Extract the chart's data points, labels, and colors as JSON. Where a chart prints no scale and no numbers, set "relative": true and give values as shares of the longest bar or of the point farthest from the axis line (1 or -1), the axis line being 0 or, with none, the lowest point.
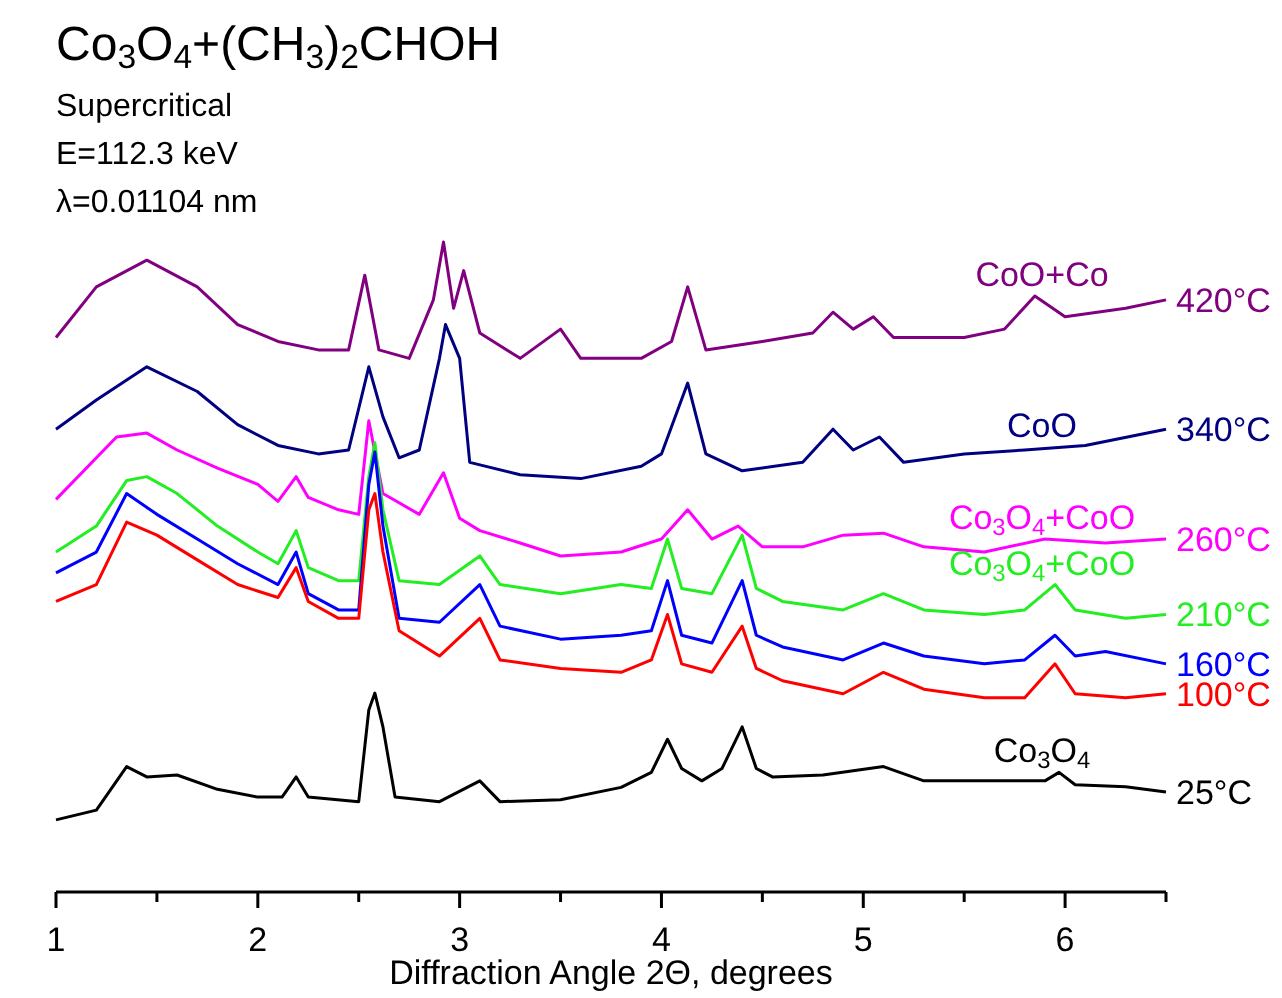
{
  "chart_data": {
    "type": "line",
    "relative": true,
    "title": "Co$_{3}$O$_{4}$+(CH$_{3}$)$_{2}$CHOH",
    "subtitle": "Supercritical\nE=112.3 keV\nλ=0.01104 nm",
    "xlabel": "Diffraction Angle 2Θ, degrees",
    "xlim": [
      1,
      6.5
    ],
    "xticks": [
      1,
      {
        "value": 1.5,
        "label": null
      },
      2,
      {
        "value": 2.5,
        "label": null
      },
      3,
      {
        "value": 3.5,
        "label": null
      },
      4,
      {
        "value": 4.5,
        "label": null
      },
      5,
      {
        "value": 5.5,
        "label": null
      },
      6,
      {
        "value": 6.5,
        "label": null
      }
    ],
    "tick_labels": "x",
    "grid": false,
    "marker": "none",
    "line_style": "solid",
    "series": [
      {
        "name": "420°C",
        "color": "#800080",
        "x": [
          1.0,
          1.2,
          1.45,
          1.7,
          1.9,
          2.1,
          2.3,
          2.45,
          2.53,
          2.6,
          2.75,
          2.87,
          2.92,
          2.97,
          3.02,
          3.1,
          3.3,
          3.5,
          3.6,
          3.9,
          4.05,
          4.13,
          4.22,
          4.5,
          4.75,
          4.85,
          4.95,
          5.05,
          5.15,
          5.5,
          5.7,
          5.85,
          6.0,
          6.3,
          6.5
        ],
        "values": [
          0.853,
          0.931,
          0.972,
          0.931,
          0.873,
          0.847,
          0.834,
          0.834,
          0.949,
          0.834,
          0.821,
          0.911,
          1.0,
          0.898,
          0.956,
          0.86,
          0.821,
          0.866,
          0.821,
          0.821,
          0.847,
          0.931,
          0.834,
          0.847,
          0.86,
          0.892,
          0.866,
          0.885,
          0.853,
          0.853,
          0.866,
          0.917,
          0.885,
          0.898,
          0.911
        ]
      },
      {
        "name": "340°C",
        "color": "#000080",
        "x": [
          1.0,
          1.2,
          1.45,
          1.7,
          1.9,
          2.1,
          2.3,
          2.45,
          2.55,
          2.62,
          2.7,
          2.8,
          2.9,
          2.93,
          3.0,
          3.05,
          3.3,
          3.6,
          3.9,
          4.0,
          4.13,
          4.22,
          4.4,
          4.7,
          4.85,
          4.95,
          5.08,
          5.2,
          5.5,
          5.8,
          6.1,
          6.5
        ],
        "values": [
          0.712,
          0.757,
          0.808,
          0.77,
          0.719,
          0.687,
          0.674,
          0.68,
          0.808,
          0.731,
          0.668,
          0.68,
          0.821,
          0.873,
          0.821,
          0.661,
          0.642,
          0.636,
          0.655,
          0.674,
          0.783,
          0.674,
          0.648,
          0.661,
          0.712,
          0.68,
          0.7,
          0.661,
          0.674,
          0.68,
          0.687,
          0.712
        ]
      },
      {
        "name": "260°C",
        "color": "#ff00ff",
        "x": [
          1.0,
          1.3,
          1.45,
          1.6,
          1.8,
          2.0,
          2.1,
          2.19,
          2.25,
          2.4,
          2.5,
          2.55,
          2.62,
          2.8,
          2.92,
          3.0,
          3.1,
          3.3,
          3.5,
          3.8,
          4.0,
          4.13,
          4.25,
          4.38,
          4.5,
          4.7,
          4.9,
          5.1,
          5.3,
          5.6,
          5.9,
          6.2,
          6.5
        ],
        "values": [
          0.604,
          0.7,
          0.706,
          0.68,
          0.652,
          0.627,
          0.601,
          0.639,
          0.607,
          0.588,
          0.581,
          0.725,
          0.613,
          0.581,
          0.645,
          0.575,
          0.556,
          0.537,
          0.517,
          0.523,
          0.543,
          0.588,
          0.543,
          0.563,
          0.531,
          0.531,
          0.549,
          0.552,
          0.531,
          0.523,
          0.543,
          0.537,
          0.543
        ]
      },
      {
        "name": "210°C",
        "color": "#22ee22",
        "x": [
          1.0,
          1.2,
          1.35,
          1.45,
          1.6,
          1.8,
          2.0,
          2.1,
          2.19,
          2.25,
          2.4,
          2.5,
          2.55,
          2.58,
          2.62,
          2.7,
          2.9,
          3.1,
          3.2,
          3.5,
          3.8,
          3.95,
          4.03,
          4.1,
          4.25,
          4.4,
          4.47,
          4.6,
          4.9,
          5.1,
          5.3,
          5.6,
          5.8,
          5.95,
          6.05,
          6.3,
          6.5
        ],
        "values": [
          0.523,
          0.563,
          0.633,
          0.639,
          0.613,
          0.563,
          0.523,
          0.505,
          0.556,
          0.499,
          0.479,
          0.479,
          0.639,
          0.691,
          0.588,
          0.479,
          0.473,
          0.517,
          0.473,
          0.459,
          0.473,
          0.467,
          0.543,
          0.467,
          0.459,
          0.549,
          0.467,
          0.447,
          0.434,
          0.459,
          0.434,
          0.427,
          0.434,
          0.473,
          0.434,
          0.421,
          0.427
        ]
      },
      {
        "name": "160°C",
        "color": "#0000ff",
        "x": [
          1.0,
          1.2,
          1.35,
          1.5,
          1.7,
          1.9,
          2.1,
          2.19,
          2.25,
          2.4,
          2.5,
          2.55,
          2.58,
          2.62,
          2.7,
          2.9,
          3.1,
          3.2,
          3.5,
          3.8,
          3.95,
          4.03,
          4.1,
          4.25,
          4.4,
          4.47,
          4.6,
          4.9,
          5.1,
          5.3,
          5.6,
          5.8,
          5.95,
          6.05,
          6.2,
          6.5
        ],
        "values": [
          0.491,
          0.523,
          0.613,
          0.581,
          0.543,
          0.505,
          0.473,
          0.523,
          0.459,
          0.434,
          0.434,
          0.627,
          0.677,
          0.563,
          0.421,
          0.415,
          0.473,
          0.409,
          0.389,
          0.395,
          0.402,
          0.479,
          0.395,
          0.383,
          0.479,
          0.395,
          0.377,
          0.357,
          0.383,
          0.363,
          0.351,
          0.357,
          0.395,
          0.363,
          0.37,
          0.351
        ]
      },
      {
        "name": "100°C",
        "color": "#ff0000",
        "x": [
          1.0,
          1.2,
          1.35,
          1.5,
          1.7,
          1.9,
          2.1,
          2.19,
          2.25,
          2.4,
          2.5,
          2.55,
          2.58,
          2.62,
          2.7,
          2.9,
          3.1,
          3.2,
          3.5,
          3.8,
          3.95,
          4.03,
          4.1,
          4.25,
          4.4,
          4.47,
          4.6,
          4.9,
          5.1,
          5.3,
          5.6,
          5.8,
          5.95,
          6.05,
          6.3,
          6.5
        ],
        "values": [
          0.447,
          0.473,
          0.569,
          0.549,
          0.511,
          0.473,
          0.453,
          0.499,
          0.447,
          0.421,
          0.421,
          0.588,
          0.613,
          0.523,
          0.402,
          0.363,
          0.421,
          0.357,
          0.344,
          0.338,
          0.357,
          0.427,
          0.351,
          0.338,
          0.409,
          0.344,
          0.325,
          0.305,
          0.338,
          0.312,
          0.299,
          0.299,
          0.351,
          0.305,
          0.299,
          0.305
        ]
      },
      {
        "name": "25°C",
        "color": "#000000",
        "x": [
          1.0,
          1.2,
          1.35,
          1.45,
          1.6,
          1.8,
          2.0,
          2.12,
          2.19,
          2.25,
          2.5,
          2.55,
          2.58,
          2.62,
          2.68,
          2.9,
          3.1,
          3.2,
          3.5,
          3.8,
          3.95,
          4.03,
          4.1,
          4.2,
          4.3,
          4.4,
          4.47,
          4.55,
          4.8,
          5.1,
          5.3,
          5.6,
          5.9,
          5.97,
          6.05,
          6.3,
          6.5
        ],
        "values": [
          0.111,
          0.126,
          0.193,
          0.177,
          0.18,
          0.158,
          0.146,
          0.146,
          0.177,
          0.146,
          0.139,
          0.28,
          0.306,
          0.254,
          0.146,
          0.139,
          0.171,
          0.139,
          0.142,
          0.161,
          0.184,
          0.235,
          0.19,
          0.171,
          0.19,
          0.254,
          0.19,
          0.177,
          0.18,
          0.193,
          0.171,
          0.171,
          0.171,
          0.184,
          0.165,
          0.162,
          0.154
        ]
      }
    ],
    "annotations": [
      "CoO+Co",
      "CoO",
      "Co$_{3}$O$_{4}$+CoO",
      "Co$_{3}$O$_{4}$+CoO",
      "Co$_{3}$O$_{4}$"
    ]
  }
}
